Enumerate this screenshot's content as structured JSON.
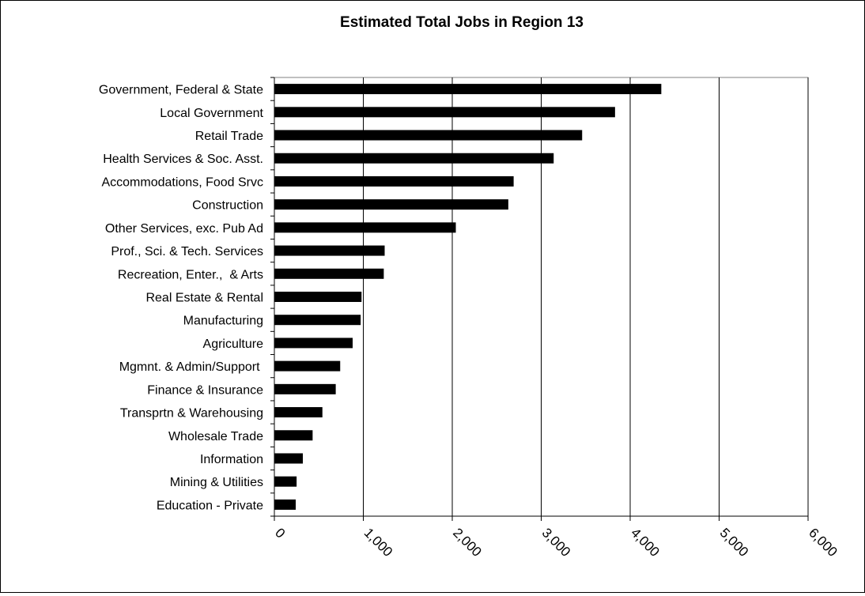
{
  "chart_data": {
    "type": "bar",
    "orientation": "horizontal",
    "title": "Estimated Total Jobs in Region 13",
    "xlabel": "",
    "ylabel": "",
    "categories": [
      "Government, Federal & State",
      "Local Government",
      "Retail Trade",
      "Health Services & Soc. Asst.",
      "Accommodations, Food Srvc",
      "Construction",
      "Other Services, exc. Pub Ad",
      "Prof., Sci. & Tech. Services",
      "Recreation, Enter.,  & Arts",
      "Real Estate & Rental",
      "Manufacturing",
      "Agriculture",
      "Mgmnt. & Admin/Support ",
      "Finance & Insurance",
      "Transprtn & Warehousing",
      "Wholesale Trade",
      "Information",
      "Mining & Utilities",
      "Education - Private"
    ],
    "values": [
      4350,
      3830,
      3460,
      3140,
      2690,
      2630,
      2040,
      1240,
      1230,
      980,
      970,
      880,
      740,
      690,
      540,
      430,
      320,
      250,
      240
    ],
    "xlim": [
      0,
      6000
    ],
    "xticks": [
      0,
      1000,
      2000,
      3000,
      4000,
      5000,
      6000
    ],
    "xtick_labels": [
      "0",
      "1,000",
      "2,000",
      "3,000",
      "4,000",
      "5,000",
      "6,000"
    ],
    "grid": "vertical",
    "legend": "none",
    "bar_color": "#000000"
  }
}
